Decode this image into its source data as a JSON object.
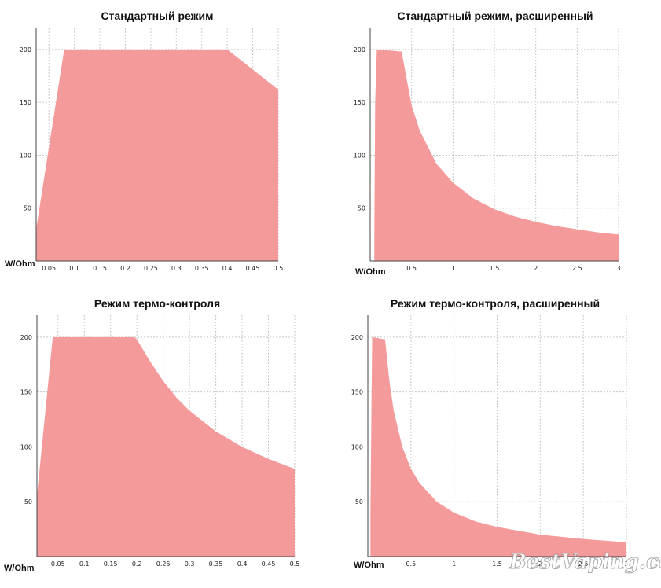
{
  "watermark": "BestVaping.com",
  "colors": {
    "fill": "#f59a9b",
    "grid": "#c9c9c9",
    "axis": "#444444"
  },
  "chart_data": [
    {
      "type": "area",
      "title": "Стандартный режим",
      "xlabel": "W/Ohm",
      "xlim": [
        0.025,
        0.5
      ],
      "ylim": [
        0,
        220
      ],
      "xticks": [
        0.05,
        0.1,
        0.15,
        0.2,
        0.25,
        0.3,
        0.35,
        0.4,
        0.45,
        0.5
      ],
      "xtick_labels": [
        "0.05",
        "0.1",
        "0.15",
        "0.2",
        "0.25",
        "0.3",
        "0.35",
        "0.4",
        "0.45",
        "0.5"
      ],
      "yticks": [
        50,
        100,
        150,
        200
      ],
      "ytick_labels": [
        "50",
        "100",
        "150",
        "200"
      ],
      "x": [
        0.025,
        0.08,
        0.4,
        0.5
      ],
      "y": [
        30,
        200,
        200,
        162
      ],
      "grid": true
    },
    {
      "type": "area",
      "title": "Стандартный режим, расширенный",
      "xlabel": "W/Ohm",
      "xlim": [
        0,
        3
      ],
      "ylim": [
        0,
        220
      ],
      "xticks": [
        0.5,
        1,
        1.5,
        2,
        2.5,
        3
      ],
      "xtick_labels": [
        "0.5",
        "1",
        "1.5",
        "2",
        "2.5",
        "3"
      ],
      "yticks": [
        50,
        100,
        150,
        200
      ],
      "ytick_labels": [
        "50",
        "100",
        "150",
        "200"
      ],
      "x": [
        0.05,
        0.06,
        0.08,
        0.38,
        0.5,
        0.6,
        0.8,
        1.0,
        1.25,
        1.5,
        1.75,
        2.0,
        2.25,
        2.5,
        2.75,
        3.0
      ],
      "y": [
        25,
        150,
        200,
        198,
        147,
        123,
        92,
        74,
        59,
        49,
        42,
        37,
        33,
        30,
        27,
        25
      ],
      "grid": true
    },
    {
      "type": "area",
      "title": "Режим термо-контроля",
      "xlabel": "W/Ohm",
      "xlim": [
        0.01,
        0.5
      ],
      "ylim": [
        0,
        220
      ],
      "xticks": [
        0.05,
        0.1,
        0.15,
        0.2,
        0.25,
        0.3,
        0.35,
        0.4,
        0.45,
        0.5
      ],
      "xtick_labels": [
        "0.05",
        "0.1",
        "0.15",
        "0.2",
        "0.25",
        "0.3",
        "0.35",
        "0.4",
        "0.45",
        "0.5"
      ],
      "yticks": [
        50,
        100,
        150,
        200
      ],
      "ytick_labels": [
        "50",
        "100",
        "150",
        "200"
      ],
      "x": [
        0.01,
        0.04,
        0.195,
        0.2,
        0.225,
        0.25,
        0.275,
        0.3,
        0.35,
        0.4,
        0.45,
        0.5
      ],
      "y": [
        55,
        200,
        200,
        198,
        178,
        160,
        145,
        133,
        114,
        100,
        89,
        80
      ],
      "grid": true
    },
    {
      "type": "area",
      "title": "Режим термо-контроля, расширенный",
      "xlabel": "W/Ohm",
      "xlim": [
        0,
        3
      ],
      "ylim": [
        0,
        220
      ],
      "xticks": [
        0.5,
        1,
        1.5,
        2,
        2.5,
        3
      ],
      "xtick_labels": [
        "0.5",
        "1",
        "1.5",
        "2",
        "2.5",
        "3"
      ],
      "yticks": [
        50,
        100,
        150,
        200
      ],
      "ytick_labels": [
        "50",
        "100",
        "150",
        "200"
      ],
      "x": [
        0.03,
        0.05,
        0.2,
        0.25,
        0.3,
        0.4,
        0.5,
        0.6,
        0.8,
        1.0,
        1.25,
        1.5,
        2.0,
        2.5,
        3.0
      ],
      "y": [
        40,
        200,
        198,
        160,
        133,
        100,
        80,
        67,
        50,
        40,
        32,
        27,
        20,
        16,
        13
      ],
      "grid": true
    }
  ]
}
